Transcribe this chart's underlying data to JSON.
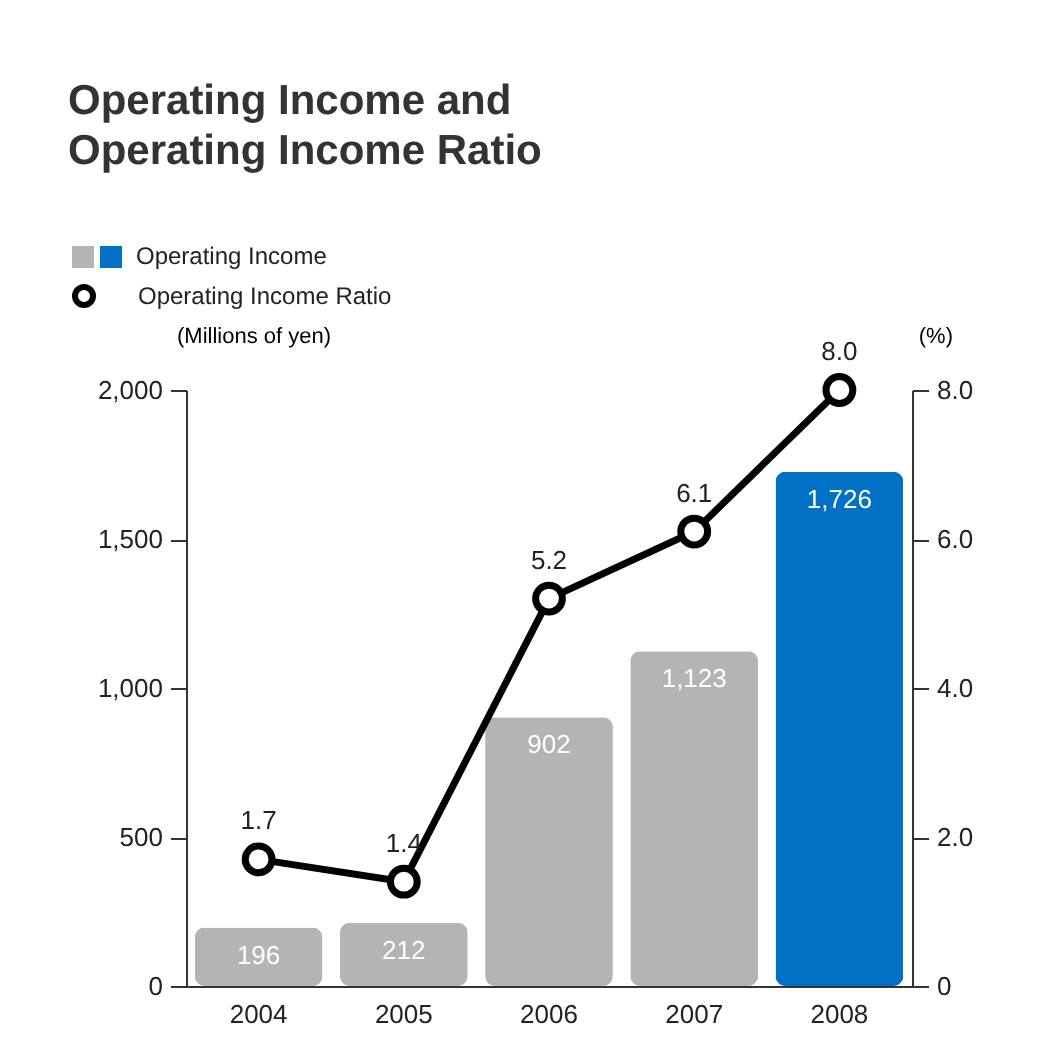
{
  "chart_data": {
    "type": "bar",
    "title": "Operating Income and Operating Income Ratio",
    "categories": [
      "2004",
      "2005",
      "2006",
      "2007",
      "2008"
    ],
    "series": [
      {
        "name": "Operating Income",
        "colors": [
          "#b4b4b4",
          "#b4b4b4",
          "#b4b4b4",
          "#b4b4b4",
          "#0071c5"
        ],
        "values": [
          196,
          212,
          902,
          1123,
          1726
        ],
        "value_labels": [
          "196",
          "212",
          "902",
          "1,123",
          "1,726"
        ]
      },
      {
        "name": "Operating Income Ratio",
        "type": "line",
        "axis": "y2",
        "color": "#000000",
        "values": [
          1.7,
          1.4,
          5.2,
          6.1,
          8.0
        ],
        "value_labels": [
          "1.7",
          "1.4",
          "5.2",
          "6.1",
          "8.0"
        ]
      }
    ],
    "ylabel": "(Millions of yen)",
    "y2label": "(%)",
    "ylim": [
      0,
      2000
    ],
    "yticks": [
      0,
      {
        "value": 500,
        "label": "500"
      },
      {
        "value": 1000,
        "label": "1,000"
      },
      {
        "value": 1500,
        "label": "1,500"
      },
      {
        "value": 2000,
        "label": "2,000"
      }
    ],
    "y2lim": [
      0,
      8
    ],
    "y2ticks": [
      0,
      {
        "value": 2,
        "label": "2.0"
      },
      {
        "value": 4,
        "label": "4.0"
      },
      {
        "value": 6,
        "label": "6.0"
      },
      {
        "value": 8,
        "label": "8.0"
      }
    ],
    "data_labels": true,
    "grid": false,
    "legend": "top left",
    "marker": "circle",
    "line_style": "solid"
  }
}
